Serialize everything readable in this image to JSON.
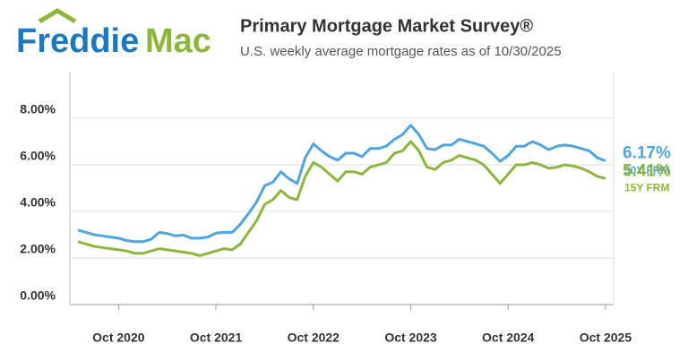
{
  "brand": {
    "first": "Freddie",
    "second": "Mac"
  },
  "chart_data": {
    "type": "line",
    "title": "Primary Mortgage Market Survey®",
    "subtitle": "U.S. weekly average mortgage rates as of 10/30/2025",
    "x": [
      "2020-05",
      "2020-06",
      "2020-07",
      "2020-08",
      "2020-09",
      "2020-10",
      "2020-11",
      "2020-12",
      "2021-01",
      "2021-02",
      "2021-03",
      "2021-04",
      "2021-05",
      "2021-06",
      "2021-07",
      "2021-08",
      "2021-09",
      "2021-10",
      "2021-11",
      "2021-12",
      "2022-01",
      "2022-02",
      "2022-03",
      "2022-04",
      "2022-05",
      "2022-06",
      "2022-07",
      "2022-08",
      "2022-09",
      "2022-10",
      "2022-11",
      "2022-12",
      "2023-01",
      "2023-02",
      "2023-03",
      "2023-04",
      "2023-05",
      "2023-06",
      "2023-07",
      "2023-08",
      "2023-09",
      "2023-10",
      "2023-11",
      "2023-12",
      "2024-01",
      "2024-02",
      "2024-03",
      "2024-04",
      "2024-05",
      "2024-06",
      "2024-07",
      "2024-08",
      "2024-09",
      "2024-10",
      "2024-11",
      "2024-12",
      "2025-01",
      "2025-02",
      "2025-03",
      "2025-04",
      "2025-05",
      "2025-06",
      "2025-07",
      "2025-08",
      "2025-09",
      "2025-10"
    ],
    "series": [
      {
        "name": "30Y FRM",
        "color": "#4ea5e0",
        "values": [
          3.2,
          3.1,
          3.0,
          2.95,
          2.9,
          2.85,
          2.75,
          2.7,
          2.7,
          2.8,
          3.1,
          3.05,
          2.95,
          2.98,
          2.85,
          2.85,
          2.9,
          3.07,
          3.1,
          3.1,
          3.45,
          3.9,
          4.4,
          5.1,
          5.25,
          5.7,
          5.4,
          5.2,
          6.3,
          6.9,
          6.6,
          6.35,
          6.2,
          6.5,
          6.5,
          6.35,
          6.7,
          6.7,
          6.8,
          7.1,
          7.3,
          7.7,
          7.3,
          6.7,
          6.65,
          6.85,
          6.85,
          7.1,
          7.0,
          6.9,
          6.8,
          6.5,
          6.15,
          6.4,
          6.8,
          6.8,
          7.0,
          6.85,
          6.65,
          6.8,
          6.85,
          6.8,
          6.7,
          6.6,
          6.3,
          6.17
        ],
        "value_labels": [
          null,
          null,
          null,
          null,
          null,
          null,
          null,
          null,
          null,
          null,
          null,
          null,
          null,
          null,
          null,
          null,
          null,
          null,
          null,
          null,
          null,
          null,
          null,
          null,
          null,
          null,
          null,
          null,
          null,
          null,
          null,
          null,
          null,
          null,
          null,
          null,
          null,
          null,
          null,
          null,
          null,
          null,
          null,
          null,
          null,
          null,
          null,
          null,
          null,
          null,
          null,
          null,
          null,
          null,
          null,
          null,
          null,
          null,
          null,
          null,
          null,
          null,
          null,
          null,
          null,
          "6.17%"
        ]
      },
      {
        "name": "15Y FRM",
        "color": "#8cb63c",
        "values": [
          2.7,
          2.6,
          2.5,
          2.45,
          2.4,
          2.35,
          2.3,
          2.2,
          2.2,
          2.3,
          2.4,
          2.35,
          2.3,
          2.25,
          2.2,
          2.1,
          2.2,
          2.3,
          2.4,
          2.35,
          2.6,
          3.1,
          3.6,
          4.3,
          4.5,
          4.9,
          4.6,
          4.5,
          5.5,
          6.1,
          5.9,
          5.6,
          5.3,
          5.7,
          5.7,
          5.6,
          5.9,
          6.0,
          6.1,
          6.5,
          6.6,
          7.0,
          6.6,
          5.9,
          5.8,
          6.1,
          6.2,
          6.4,
          6.3,
          6.2,
          6.0,
          5.6,
          5.2,
          5.6,
          6.0,
          6.0,
          6.1,
          6.0,
          5.85,
          5.9,
          6.0,
          5.95,
          5.85,
          5.7,
          5.5,
          5.41
        ],
        "value_labels": [
          null,
          null,
          null,
          null,
          null,
          null,
          null,
          null,
          null,
          null,
          null,
          null,
          null,
          null,
          null,
          null,
          null,
          null,
          null,
          null,
          null,
          null,
          null,
          null,
          null,
          null,
          null,
          null,
          null,
          null,
          null,
          null,
          null,
          null,
          null,
          null,
          null,
          null,
          null,
          null,
          null,
          null,
          null,
          null,
          null,
          null,
          null,
          null,
          null,
          null,
          null,
          null,
          null,
          null,
          null,
          null,
          null,
          null,
          null,
          null,
          null,
          null,
          null,
          null,
          null,
          "5.41%"
        ]
      }
    ],
    "xlim": [
      "2020-04",
      "2025-11"
    ],
    "xticks": [
      {
        "value": "2020-10",
        "label": "Oct 2020"
      },
      {
        "value": "2021-10",
        "label": "Oct 2021"
      },
      {
        "value": "2022-10",
        "label": "Oct 2022"
      },
      {
        "value": "2023-10",
        "label": "Oct 2023"
      },
      {
        "value": "2024-10",
        "label": "Oct 2024"
      },
      {
        "value": "2025-10",
        "label": "Oct 2025"
      }
    ],
    "ylim": [
      0,
      10
    ],
    "yticks": [
      {
        "value": 0,
        "label": "0.00%"
      },
      {
        "value": 2,
        "label": "2.00%"
      },
      {
        "value": 4,
        "label": "4.00%"
      },
      {
        "value": 6,
        "label": "6.00%"
      },
      {
        "value": 8,
        "label": "8.00%"
      }
    ],
    "grid": true
  }
}
